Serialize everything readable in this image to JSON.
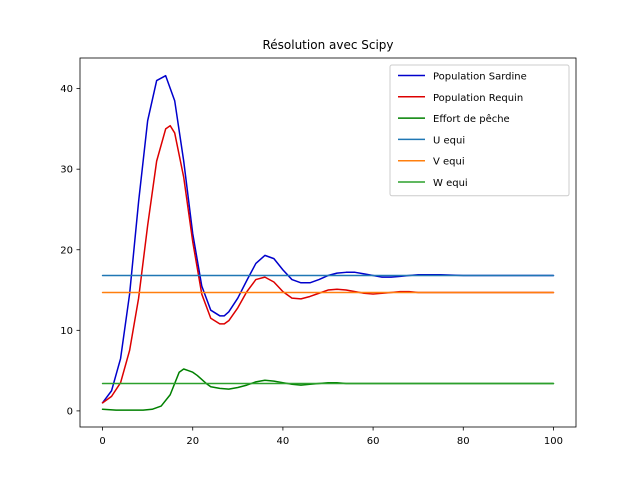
{
  "chart_data": {
    "type": "line",
    "title": "Résolution avec Scipy",
    "xlabel": "",
    "ylabel": "",
    "xlim": [
      -5,
      105
    ],
    "ylim": [
      -2,
      43.8
    ],
    "xticks": [
      0,
      20,
      40,
      60,
      80,
      100
    ],
    "yticks": [
      0,
      10,
      20,
      30,
      40
    ],
    "legend_position": "top-right",
    "grid": false,
    "series": [
      {
        "name": "Population Sardine",
        "color": "#0000cc",
        "x": [
          0,
          2,
          4,
          6,
          8,
          10,
          12,
          14,
          16,
          18,
          20,
          22,
          24,
          26,
          27,
          28,
          30,
          32,
          34,
          36,
          38,
          40,
          42,
          44,
          46,
          48,
          50,
          52,
          54,
          56,
          58,
          60,
          62,
          64,
          66,
          68,
          70,
          75,
          80,
          85,
          90,
          95,
          100
        ],
        "y": [
          1,
          2.5,
          6.5,
          14.5,
          26,
          36,
          41,
          41.6,
          38.5,
          31,
          22,
          15.5,
          12.5,
          11.8,
          11.8,
          12.3,
          14,
          16.2,
          18.3,
          19.3,
          18.9,
          17.5,
          16.3,
          15.9,
          15.9,
          16.3,
          16.8,
          17.1,
          17.2,
          17.2,
          17,
          16.8,
          16.6,
          16.6,
          16.7,
          16.8,
          16.9,
          16.9,
          16.8,
          16.8,
          16.8,
          16.8,
          16.8
        ]
      },
      {
        "name": "Population Requin",
        "color": "#dd0000",
        "x": [
          0,
          2,
          4,
          6,
          8,
          10,
          12,
          14,
          15,
          16,
          18,
          20,
          22,
          24,
          26,
          27,
          28,
          30,
          32,
          34,
          36,
          38,
          40,
          42,
          44,
          46,
          48,
          50,
          52,
          54,
          56,
          58,
          60,
          62,
          64,
          66,
          68,
          70,
          75,
          80,
          85,
          90,
          95,
          100
        ],
        "y": [
          1,
          1.8,
          3.5,
          7.5,
          14,
          23,
          31,
          35,
          35.4,
          34.5,
          29,
          21,
          14.5,
          11.5,
          10.8,
          10.8,
          11.2,
          12.8,
          14.8,
          16.3,
          16.6,
          16,
          14.8,
          14,
          13.9,
          14.2,
          14.6,
          15,
          15.1,
          15,
          14.8,
          14.6,
          14.5,
          14.6,
          14.7,
          14.8,
          14.8,
          14.7,
          14.7,
          14.7,
          14.7,
          14.7,
          14.7,
          14.7
        ]
      },
      {
        "name": "Effort de pêche",
        "color": "#008000",
        "x": [
          0,
          3,
          6,
          9,
          11,
          13,
          15,
          17,
          18,
          19,
          20,
          21,
          22,
          23,
          24,
          26,
          28,
          30,
          32,
          34,
          36,
          38,
          40,
          42,
          44,
          46,
          48,
          50,
          52,
          54,
          56,
          58,
          60,
          65,
          70,
          75,
          80,
          85,
          90,
          95,
          100
        ],
        "y": [
          0.2,
          0.1,
          0.1,
          0.1,
          0.2,
          0.6,
          2,
          4.8,
          5.2,
          5,
          4.8,
          4.4,
          3.9,
          3.4,
          3,
          2.8,
          2.7,
          2.9,
          3.2,
          3.6,
          3.8,
          3.7,
          3.5,
          3.3,
          3.2,
          3.3,
          3.4,
          3.5,
          3.5,
          3.4,
          3.4,
          3.4,
          3.4,
          3.4,
          3.4,
          3.4,
          3.4,
          3.4,
          3.4,
          3.4,
          3.4
        ]
      },
      {
        "name": "U equi",
        "color": "#1f77b4",
        "x": [
          0,
          100
        ],
        "y": [
          16.8,
          16.8
        ]
      },
      {
        "name": "V equi",
        "color": "#ff7f0e",
        "x": [
          0,
          100
        ],
        "y": [
          14.7,
          14.7
        ]
      },
      {
        "name": "W equi",
        "color": "#2ca02c",
        "x": [
          0,
          100
        ],
        "y": [
          3.4,
          3.4
        ]
      }
    ]
  }
}
